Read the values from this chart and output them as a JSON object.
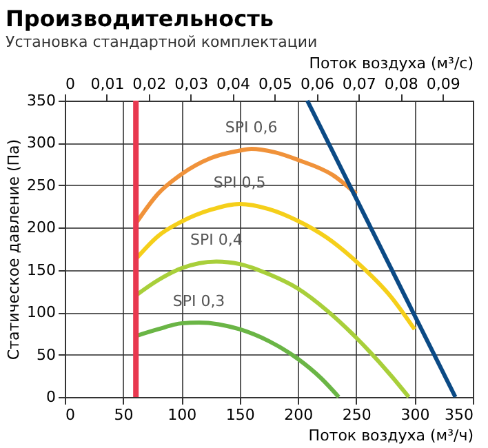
{
  "chart_data": {
    "type": "line",
    "title": "Производительность",
    "subtitle": "Установка стандартной комплектации",
    "xlabel": "Поток воздуха (м³/ч)",
    "x2label": "Поток воздуха (м³/с)",
    "ylabel": "Статическое давление (Па)",
    "xlim": [
      0,
      350
    ],
    "xticks": [
      0,
      50,
      100,
      150,
      200,
      250,
      300,
      350
    ],
    "ylim": [
      0,
      350
    ],
    "yticks": [
      0,
      50,
      100,
      150,
      200,
      250,
      300,
      350
    ],
    "x2lim": [
      0,
      0.0972
    ],
    "x2ticks": [
      {
        "value": 0,
        "label": "0"
      },
      {
        "value": 0.01,
        "label": "0,01"
      },
      {
        "value": 0.02,
        "label": "0,02"
      },
      {
        "value": 0.03,
        "label": "0,03"
      },
      {
        "value": 0.04,
        "label": "0,04"
      },
      {
        "value": 0.05,
        "label": "0,05"
      },
      {
        "value": 0.06,
        "label": "0,06"
      },
      {
        "value": 0.07,
        "label": "0,07"
      },
      {
        "value": 0.08,
        "label": "0,08"
      },
      {
        "value": 0.09,
        "label": "0,09"
      }
    ],
    "grid": true,
    "marker": "none",
    "line_style": "solid",
    "series": [
      {
        "name": "SPI 0,6",
        "color": "#f0923a",
        "x": [
          61,
          80,
          100,
          125,
          150,
          160,
          180,
          200,
          230,
          250
        ],
        "values": [
          205,
          240,
          263,
          282,
          291,
          293,
          289,
          280,
          262,
          240
        ]
      },
      {
        "name": "SPI 0,5",
        "color": "#f5cf1a",
        "x": [
          61,
          80,
          100,
          125,
          150,
          175,
          200,
          225,
          250,
          280,
          300
        ],
        "values": [
          163,
          190,
          207,
          221,
          228,
          222,
          208,
          188,
          160,
          118,
          80
        ]
      },
      {
        "name": "SPI 0,4",
        "color": "#a8cf3a",
        "x": [
          61,
          80,
          100,
          130,
          150,
          175,
          200,
          225,
          250,
          280,
          295
        ],
        "values": [
          120,
          138,
          152,
          160,
          157,
          145,
          128,
          102,
          70,
          25,
          0
        ]
      },
      {
        "name": "SPI 0,3",
        "color": "#6ab545",
        "x": [
          61,
          80,
          100,
          115,
          150,
          175,
          200,
          220,
          235
        ],
        "values": [
          72,
          80,
          87,
          88,
          80,
          66,
          45,
          22,
          0
        ]
      },
      {
        "color": "#0b4a85",
        "x": [
          208,
          335
        ],
        "values": [
          350,
          0
        ]
      }
    ],
    "ref_lines": [
      {
        "axis": "x",
        "value": 61,
        "color": "#e8384f",
        "line_style": "solid"
      }
    ]
  }
}
